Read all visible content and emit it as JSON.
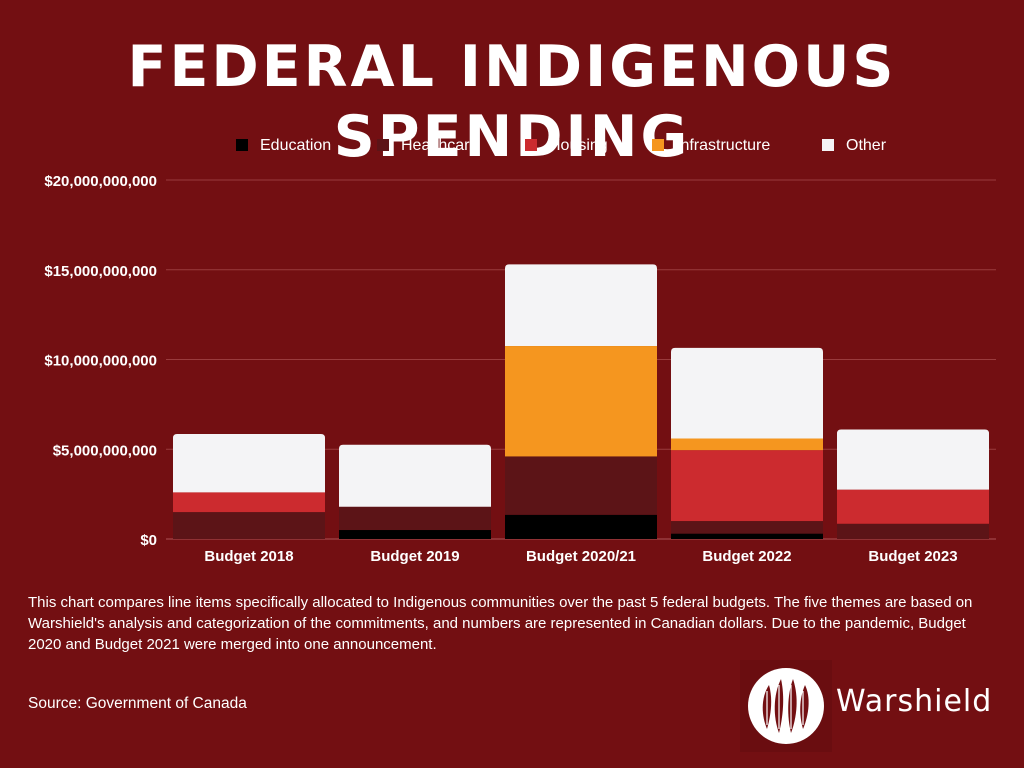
{
  "title": "FEDERAL INDIGENOUS SPENDING",
  "description": "This chart compares line items specifically allocated to Indigenous communities over the past 5 federal budgets. The five themes are based on Warshield's analysis and categorization of the commitments, and numbers are represented in Canadian dollars. Due to the pandemic, Budget 2020 and Budget 2021 were merged into one announcement.",
  "source": "Source: Government of Canada",
  "brand": {
    "name": "Warshield"
  },
  "colors": {
    "background": "#730f12",
    "grid": "#a84a4c",
    "text": "#ffffff"
  },
  "chart_data": {
    "type": "bar",
    "stacked": true,
    "title": "FEDERAL INDIGENOUS SPENDING",
    "xlabel": "",
    "ylabel": "",
    "ylim": [
      0,
      20000000000
    ],
    "yticks": [
      0,
      5000000000,
      10000000000,
      15000000000,
      20000000000
    ],
    "ytick_labels": [
      "$0",
      "$5,000,000,000",
      "$10,000,000,000",
      "$15,000,000,000",
      "$20,000,000,000"
    ],
    "categories": [
      "Budget 2018",
      "Budget 2019",
      "Budget 2020/21",
      "Budget 2022",
      "Budget 2023"
    ],
    "legend_position": "top-center",
    "grid": true,
    "series": [
      {
        "name": "Education",
        "color": "#000000",
        "values": [
          0,
          500000000,
          1350000000,
          300000000,
          0
        ]
      },
      {
        "name": "Healthcare",
        "color": "#5c1417",
        "values": [
          1500000000,
          1300000000,
          3250000000,
          700000000,
          850000000
        ]
      },
      {
        "name": "Housing",
        "color": "#cc2b2f",
        "values": [
          1100000000,
          0,
          0,
          3950000000,
          1900000000
        ]
      },
      {
        "name": "Infrastructure",
        "color": "#f5961f",
        "values": [
          0,
          0,
          6150000000,
          650000000,
          0
        ]
      },
      {
        "name": "Other",
        "color": "#f4f4f6",
        "values": [
          3250000000,
          3450000000,
          4550000000,
          5050000000,
          3350000000
        ]
      }
    ]
  }
}
